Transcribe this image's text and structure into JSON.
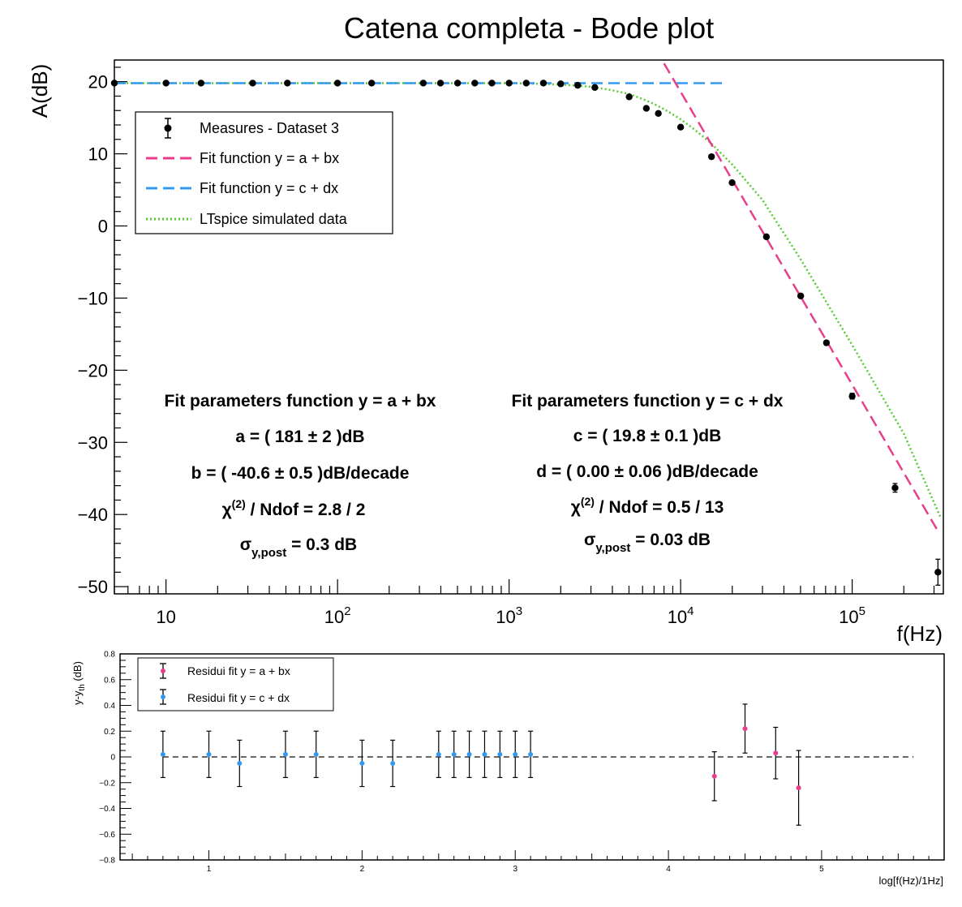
{
  "chart_data": [
    {
      "type": "scatter",
      "title": "Catena completa - Bode plot",
      "xlabel": "f(Hz)",
      "ylabel": "A(dB)",
      "xscale": "log",
      "xlim": [
        5,
        340000
      ],
      "ylim": [
        -51,
        23
      ],
      "x_ticks": [
        {
          "value": 10,
          "base": "10",
          "exp": ""
        },
        {
          "value": 100,
          "base": "10",
          "exp": "2"
        },
        {
          "value": 1000,
          "base": "10",
          "exp": "3"
        },
        {
          "value": 10000,
          "base": "10",
          "exp": "4"
        },
        {
          "value": 100000,
          "base": "10",
          "exp": "5"
        }
      ],
      "y_ticks": [
        {
          "value": 20,
          "label": "20"
        },
        {
          "value": 10,
          "label": "10"
        },
        {
          "value": 0,
          "label": "0"
        },
        {
          "value": -10,
          "label": "−10"
        },
        {
          "value": -20,
          "label": "−20"
        },
        {
          "value": -30,
          "label": "−30"
        },
        {
          "value": -40,
          "label": "−40"
        },
        {
          "value": -50,
          "label": "−50"
        }
      ],
      "legend_position": "top-left",
      "legend": [
        {
          "label": "Measures - Dataset 3",
          "style": "marker"
        },
        {
          "label": "Fit function y = a + bx",
          "style": "dashed",
          "color": "#e83e8c"
        },
        {
          "label": "Fit function y = c + dx",
          "style": "dashed",
          "color": "#3399ee"
        },
        {
          "label": "LTspice simulated data",
          "style": "dotted",
          "color": "#55cc33"
        }
      ],
      "series": [
        {
          "name": "Measures - Dataset 3",
          "color": "#000000",
          "x": [
            5,
            10,
            16,
            32,
            51,
            100,
            158,
            316,
            398,
            501,
            631,
            794,
            1000,
            1259,
            1585,
            2000,
            2512,
            3162,
            5012,
            6310,
            7413,
            10000,
            15136,
            19953,
            31623,
            50119,
            70795,
            100000,
            177828,
            316228
          ],
          "y": [
            19.8,
            19.8,
            19.8,
            19.8,
            19.8,
            19.8,
            19.8,
            19.8,
            19.8,
            19.8,
            19.8,
            19.8,
            19.8,
            19.8,
            19.8,
            19.7,
            19.5,
            19.2,
            17.9,
            16.3,
            15.6,
            13.7,
            9.6,
            6.0,
            -1.5,
            -9.7,
            -16.2,
            -23.6,
            -36.3,
            -48.0
          ],
          "y_err": [
            0.2,
            0.2,
            0.2,
            0.2,
            0.2,
            0.2,
            0.2,
            0.2,
            0.2,
            0.2,
            0.2,
            0.2,
            0.2,
            0.2,
            0.2,
            0.2,
            0.2,
            0.2,
            0.2,
            0.2,
            0.2,
            0.2,
            0.2,
            0.2,
            0.2,
            0.2,
            0.3,
            0.4,
            0.6,
            1.8
          ]
        },
        {
          "name": "Fit function y = a + bx",
          "color": "#e83e8c",
          "style": "dashed",
          "a": 181,
          "b": -40.6,
          "x_range": [
            8000,
            320000
          ]
        },
        {
          "name": "Fit function y = c + dx",
          "color": "#3399ee",
          "style": "dashed",
          "c": 19.8,
          "d": 0.0,
          "x_range": [
            5,
            18000
          ]
        },
        {
          "name": "LTspice simulated data",
          "color": "#55cc33",
          "style": "dotted",
          "x": [
            5,
            100,
            1000,
            1500,
            2000,
            3000,
            4000,
            5000,
            6000,
            7000,
            8000,
            10000,
            12000,
            15000,
            20000,
            30000,
            50000,
            100000,
            200000,
            330000
          ],
          "y": [
            19.8,
            19.8,
            19.8,
            19.7,
            19.6,
            19.3,
            18.8,
            18.3,
            17.6,
            16.9,
            16.2,
            14.8,
            13.4,
            11.5,
            8.5,
            3.6,
            -4.6,
            -16.5,
            -28.8,
            -40.6
          ]
        }
      ],
      "annotations": {
        "fit1": {
          "heading": "Fit parameters function y = a + bx",
          "color": "#e83e8c",
          "a": "a = ( 181 ± 2 )dB",
          "b": "b = ( -40.6 ± 0.5 )dB/decade",
          "chi_base": "χ",
          "chi_sup": "(2)",
          "chi_rest": " / Ndof = 2.8 / 2",
          "sigma_base": "σ",
          "sigma_sub": "y,post",
          "sigma_rest": " = 0.3 dB"
        },
        "fit2": {
          "heading": "Fit parameters function y = c + dx",
          "color": "#3399ee",
          "c": "c = ( 19.8 ± 0.1 )dB",
          "d": "d = ( 0.00 ± 0.06 )dB/decade",
          "chi_base": "χ",
          "chi_sup": "(2)",
          "chi_rest": " / Ndof = 0.5 / 13",
          "sigma_base": "σ",
          "sigma_sub": "y,post",
          "sigma_rest": " = 0.03 dB"
        }
      }
    },
    {
      "type": "scatter",
      "xlabel": "log[f(Hz)/1Hz]",
      "ylabel_base": "y-y",
      "ylabel_sub": "th",
      "ylabel_rest": " (dB)",
      "xlim": [
        0.42,
        5.8
      ],
      "ylim": [
        -0.8,
        0.8
      ],
      "x_ticks": [
        1,
        2,
        3,
        4,
        5
      ],
      "y_ticks": [
        0.8,
        0.6,
        0.4,
        0.2,
        0,
        -0.2,
        -0.4,
        -0.6,
        -0.8
      ],
      "legend_position": "top-left",
      "legend": [
        {
          "label": "Residui fit y = a + bx",
          "color": "#e83e8c"
        },
        {
          "label": "Residui fit y = c + dx",
          "color": "#3399ee"
        }
      ],
      "series": [
        {
          "name": "Residui fit y = a + bx",
          "color": "#e83e8c",
          "x": [
            4.3,
            4.5,
            4.7,
            4.85
          ],
          "y": [
            -0.15,
            0.22,
            0.03,
            -0.24
          ],
          "y_err": [
            0.19,
            0.19,
            0.2,
            0.29
          ]
        },
        {
          "name": "Residui fit y = c + dx",
          "color": "#3399ee",
          "x": [
            0.7,
            1.0,
            1.2,
            1.5,
            1.7,
            2.0,
            2.2,
            2.5,
            2.6,
            2.7,
            2.8,
            2.9,
            3.0,
            3.1
          ],
          "y": [
            0.02,
            0.02,
            -0.05,
            0.02,
            0.02,
            -0.05,
            -0.05,
            0.02,
            0.02,
            0.02,
            0.02,
            0.02,
            0.02,
            0.02
          ],
          "y_err": [
            0.18,
            0.18,
            0.18,
            0.18,
            0.18,
            0.18,
            0.18,
            0.18,
            0.18,
            0.18,
            0.18,
            0.18,
            0.18,
            0.18
          ]
        }
      ]
    }
  ]
}
